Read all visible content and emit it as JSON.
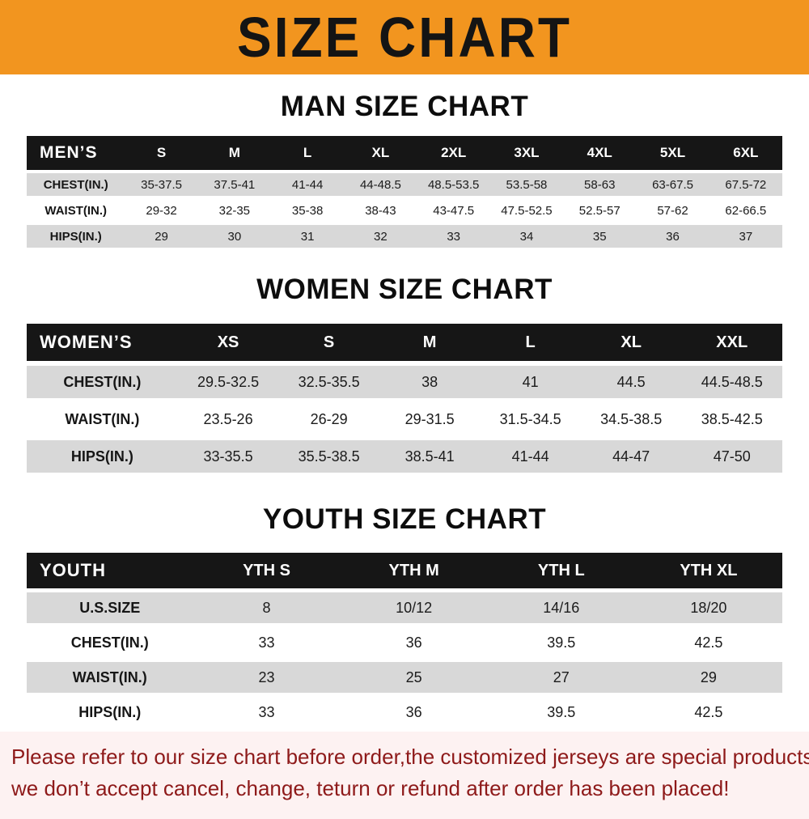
{
  "banner": {
    "title": "SIZE CHART",
    "bg_color": "#F2951F",
    "text_color": "#141414"
  },
  "sections": [
    {
      "heading": "MAN SIZE CHART",
      "table": {
        "header": [
          "MEN’S",
          "S",
          "M",
          "L",
          "XL",
          "2XL",
          "3XL",
          "4XL",
          "5XL",
          "6XL"
        ],
        "rows": [
          [
            "CHEST(IN.)",
            "35-37.5",
            "37.5-41",
            "41-44",
            "44-48.5",
            "48.5-53.5",
            "53.5-58",
            "58-63",
            "63-67.5",
            "67.5-72"
          ],
          [
            "WAIST(IN.)",
            "29-32",
            "32-35",
            "35-38",
            "38-43",
            "43-47.5",
            "47.5-52.5",
            "52.5-57",
            "57-62",
            "62-66.5"
          ],
          [
            "HIPS(IN.)",
            "29",
            "30",
            "31",
            "32",
            "33",
            "34",
            "35",
            "36",
            "37"
          ]
        ]
      }
    },
    {
      "heading": "WOMEN SIZE CHART",
      "table": {
        "header": [
          "WOMEN’S",
          "XS",
          "S",
          "M",
          "L",
          "XL",
          "XXL"
        ],
        "rows": [
          [
            "CHEST(IN.)",
            "29.5-32.5",
            "32.5-35.5",
            "38",
            "41",
            "44.5",
            "44.5-48.5"
          ],
          [
            "WAIST(IN.)",
            "23.5-26",
            "26-29",
            "29-31.5",
            "31.5-34.5",
            "34.5-38.5",
            "38.5-42.5"
          ],
          [
            "HIPS(IN.)",
            "33-35.5",
            "35.5-38.5",
            "38.5-41",
            "41-44",
            "44-47",
            "47-50"
          ]
        ]
      }
    },
    {
      "heading": "YOUTH SIZE CHART",
      "table": {
        "header": [
          "YOUTH",
          "YTH S",
          "YTH M",
          "YTH L",
          "YTH XL"
        ],
        "rows": [
          [
            "U.S.SIZE",
            "8",
            "10/12",
            "14/16",
            "18/20"
          ],
          [
            "CHEST(IN.)",
            "33",
            "36",
            "39.5",
            "42.5"
          ],
          [
            "WAIST(IN.)",
            "23",
            "25",
            "27",
            "29"
          ],
          [
            "HIPS(IN.)",
            "33",
            "36",
            "39.5",
            "42.5"
          ]
        ]
      }
    }
  ],
  "footer": {
    "line1": "Please refer to our size chart before order,the customized jerseys are special products,",
    "line2": "we don’t accept cancel, change, teturn or refund after order has been placed!",
    "text_color": "#8E1A1A",
    "bg_color": "#fdf2f2"
  }
}
